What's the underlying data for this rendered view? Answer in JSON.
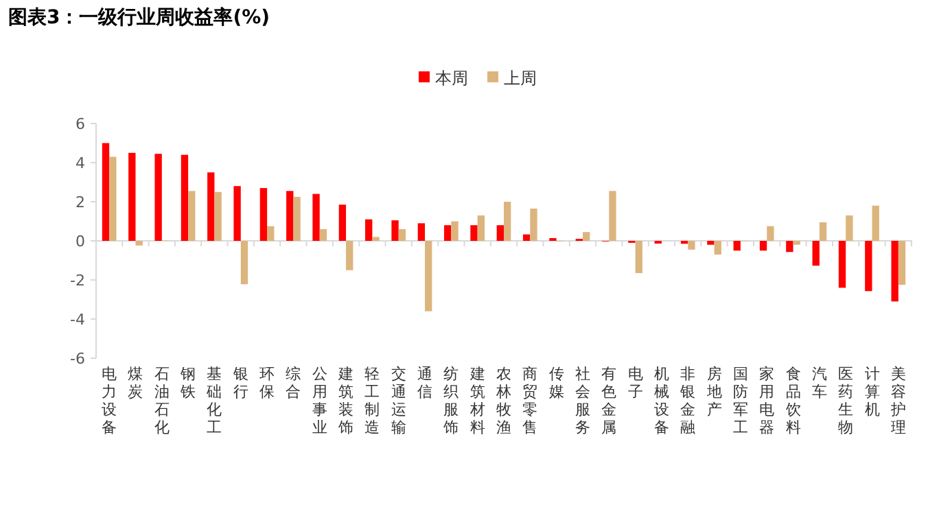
{
  "chart_data": {
    "type": "bar",
    "title": "图表3：一级行业周收益率(%)",
    "categories": [
      "电力设备",
      "煤炭",
      "石油石化",
      "钢铁",
      "基础化工",
      "银行",
      "环保",
      "综合",
      "公用事业",
      "建筑装饰",
      "轻工制造",
      "交通运输",
      "通信",
      "纺织服饰",
      "建筑材料",
      "农林牧渔",
      "商贸零售",
      "传媒",
      "社会服务",
      "有色金属",
      "电子",
      "机械设备",
      "非银金融",
      "房地产",
      "国防军工",
      "家用电器",
      "食品饮料",
      "汽车",
      "医药生物",
      "计算机",
      "美容护理"
    ],
    "series": [
      {
        "name": "本周",
        "color": "#ff0000",
        "values": [
          5.0,
          4.5,
          4.45,
          4.4,
          3.5,
          2.8,
          2.7,
          2.55,
          2.4,
          1.85,
          1.1,
          1.05,
          0.9,
          0.8,
          0.8,
          0.8,
          0.33,
          0.14,
          0.1,
          -0.03,
          -0.1,
          -0.14,
          -0.15,
          -0.2,
          -0.5,
          -0.5,
          -0.57,
          -1.27,
          -2.4,
          -2.57,
          -3.1
        ]
      },
      {
        "name": "上周",
        "color": "#dcb57e",
        "values": [
          4.3,
          -0.24,
          0.02,
          2.55,
          2.5,
          -2.22,
          0.75,
          2.25,
          0.6,
          -1.5,
          0.2,
          0.6,
          -3.6,
          1.0,
          1.3,
          2.0,
          1.65,
          -0.03,
          0.45,
          2.55,
          -1.65,
          0,
          -0.45,
          -0.7,
          -0.02,
          0.75,
          -0.2,
          0.95,
          1.3,
          1.8,
          -2.25
        ]
      }
    ],
    "ylim": [
      -6,
      6
    ],
    "yticks": [
      -6,
      -4,
      -2,
      0,
      2,
      4,
      6
    ],
    "grid": false,
    "legend": "top"
  }
}
